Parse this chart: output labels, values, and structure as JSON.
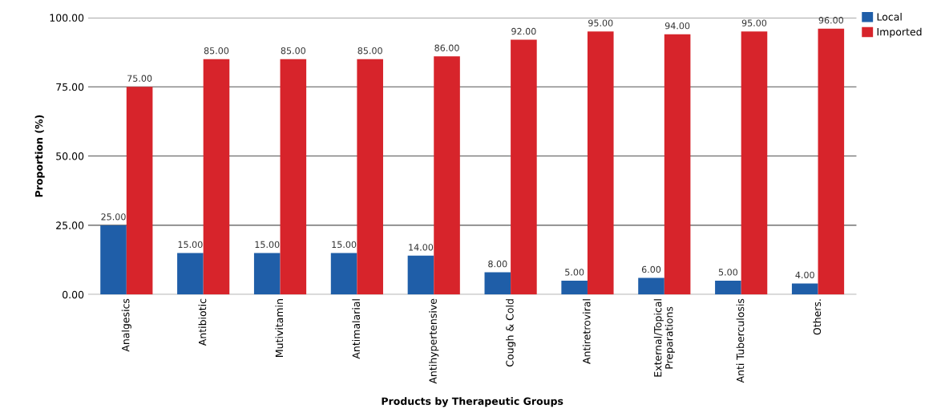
{
  "chart_data": {
    "type": "bar",
    "xlabel": "Products by Therapeutic Groups",
    "ylabel": "Proportion (%)",
    "categories": [
      "Analgesics",
      "Antibiotic",
      "Mutivitamin",
      "Antimalarial",
      "Antihypertensive",
      "Cough & Cold",
      "Antiretroviral",
      "External/Topical\nPreparations",
      "Anti Tuberculosis",
      "Others."
    ],
    "series": [
      {
        "name": "Local",
        "color": "#1f5ea8",
        "values": [
          25,
          15,
          15,
          15,
          14,
          8,
          5,
          6,
          5,
          4
        ],
        "value_labels": [
          "25.00",
          "15.00",
          "15.00",
          "15.00",
          "14.00",
          "8.00",
          "5.00",
          "6.00",
          "5.00",
          "4.00"
        ]
      },
      {
        "name": "Imported",
        "color": "#d7242b",
        "values": [
          75,
          85,
          85,
          85,
          86,
          92,
          95,
          94,
          95,
          96
        ],
        "value_labels": [
          "75.00",
          "85.00",
          "85.00",
          "85.00",
          "86.00",
          "92.00",
          "95.00",
          "94.00",
          "95.00",
          "96.00"
        ]
      }
    ],
    "ylim": [
      0,
      100
    ],
    "yticks": [
      {
        "value": 0,
        "label": "0.00"
      },
      {
        "value": 25,
        "label": "25.00"
      },
      {
        "value": 50,
        "label": "50.00"
      },
      {
        "value": 75,
        "label": "75.00"
      },
      {
        "value": 100,
        "label": "100.00"
      }
    ],
    "grid": "y",
    "legend": "top right"
  }
}
